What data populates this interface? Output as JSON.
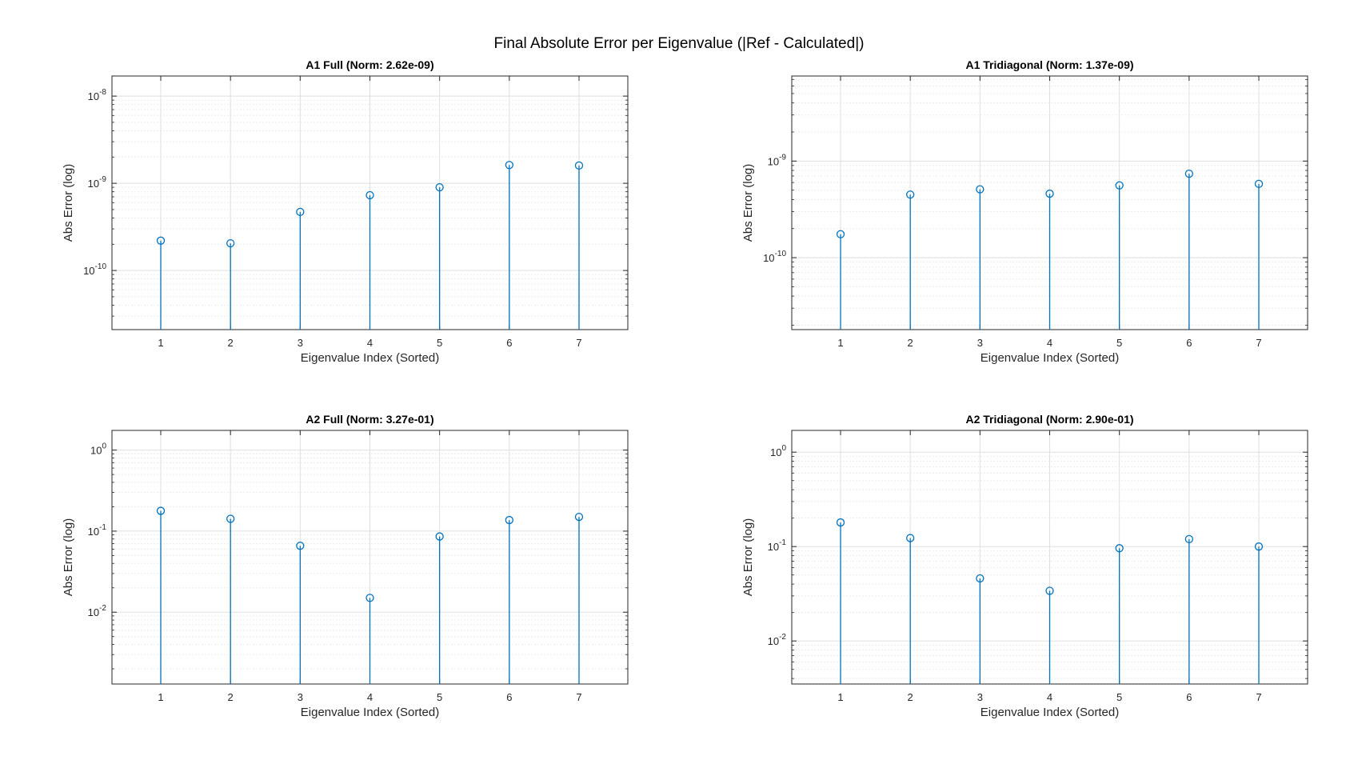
{
  "figure": {
    "suptitle": "Final Absolute Error per Eigenvalue (|Ref - Calculated|)"
  },
  "colors": {
    "stem": "#0072BD",
    "axes": "#262626",
    "grid_major": "#dfdfdf",
    "grid_minor": "#ececec"
  },
  "chart_data": [
    {
      "type": "stem",
      "title": "A1 Full (Norm: 2.62e-09)",
      "xlabel": "Eigenvalue Index (Sorted)",
      "ylabel": "Abs Error (log)",
      "y_scale": "log",
      "x": [
        1,
        2,
        3,
        4,
        5,
        6,
        7
      ],
      "xlim": [
        0.3,
        7.7
      ],
      "ylim": [
        2.1e-11,
        1.7e-08
      ],
      "y_ticks": [
        1e-10,
        1e-09,
        1e-08
      ],
      "y_tick_labels": [
        [
          "10",
          "-10"
        ],
        [
          "10",
          "-9"
        ],
        [
          "10",
          "-8"
        ]
      ],
      "grid": "on",
      "minor_grid": "on",
      "values": [
        2.2e-10,
        2.05e-10,
        4.7e-10,
        7.3e-10,
        9e-10,
        1.62e-09,
        1.6e-09
      ]
    },
    {
      "type": "stem",
      "title": "A1 Tridiagonal (Norm: 1.37e-09)",
      "xlabel": "Eigenvalue Index (Sorted)",
      "ylabel": "Abs Error (log)",
      "y_scale": "log",
      "x": [
        1,
        2,
        3,
        4,
        5,
        6,
        7
      ],
      "xlim": [
        0.3,
        7.7
      ],
      "ylim": [
        1.8e-11,
        7.6e-09
      ],
      "y_ticks": [
        1e-10,
        1e-09
      ],
      "y_tick_labels": [
        [
          "10",
          "-10"
        ],
        [
          "10",
          "-9"
        ]
      ],
      "grid": "on",
      "minor_grid": "on",
      "values": [
        1.75e-10,
        4.5e-10,
        5.1e-10,
        4.6e-10,
        5.6e-10,
        7.4e-10,
        5.8e-10
      ]
    },
    {
      "type": "stem",
      "title": "A2 Full (Norm: 3.27e-01)",
      "xlabel": "Eigenvalue Index (Sorted)",
      "ylabel": "Abs Error (log)",
      "y_scale": "log",
      "x": [
        1,
        2,
        3,
        4,
        5,
        6,
        7
      ],
      "xlim": [
        0.3,
        7.7
      ],
      "ylim": [
        0.0013,
        1.75
      ],
      "y_ticks": [
        0.01,
        0.1,
        1
      ],
      "y_tick_labels": [
        [
          "10",
          "-2"
        ],
        [
          "10",
          "-1"
        ],
        [
          "10",
          "0"
        ]
      ],
      "grid": "on",
      "minor_grid": "on",
      "values": [
        0.178,
        0.142,
        0.066,
        0.015,
        0.086,
        0.137,
        0.15
      ]
    },
    {
      "type": "stem",
      "title": "A2 Tridiagonal (Norm: 2.90e-01)",
      "xlabel": "Eigenvalue Index (Sorted)",
      "ylabel": "Abs Error (log)",
      "y_scale": "log",
      "x": [
        1,
        2,
        3,
        4,
        5,
        6,
        7
      ],
      "xlim": [
        0.3,
        7.7
      ],
      "ylim": [
        0.0035,
        1.7
      ],
      "y_ticks": [
        0.01,
        0.1,
        1
      ],
      "y_tick_labels": [
        [
          "10",
          "-2"
        ],
        [
          "10",
          "-1"
        ],
        [
          "10",
          "0"
        ]
      ],
      "grid": "on",
      "minor_grid": "on",
      "values": [
        0.18,
        0.123,
        0.046,
        0.034,
        0.096,
        0.12,
        0.1
      ]
    }
  ]
}
